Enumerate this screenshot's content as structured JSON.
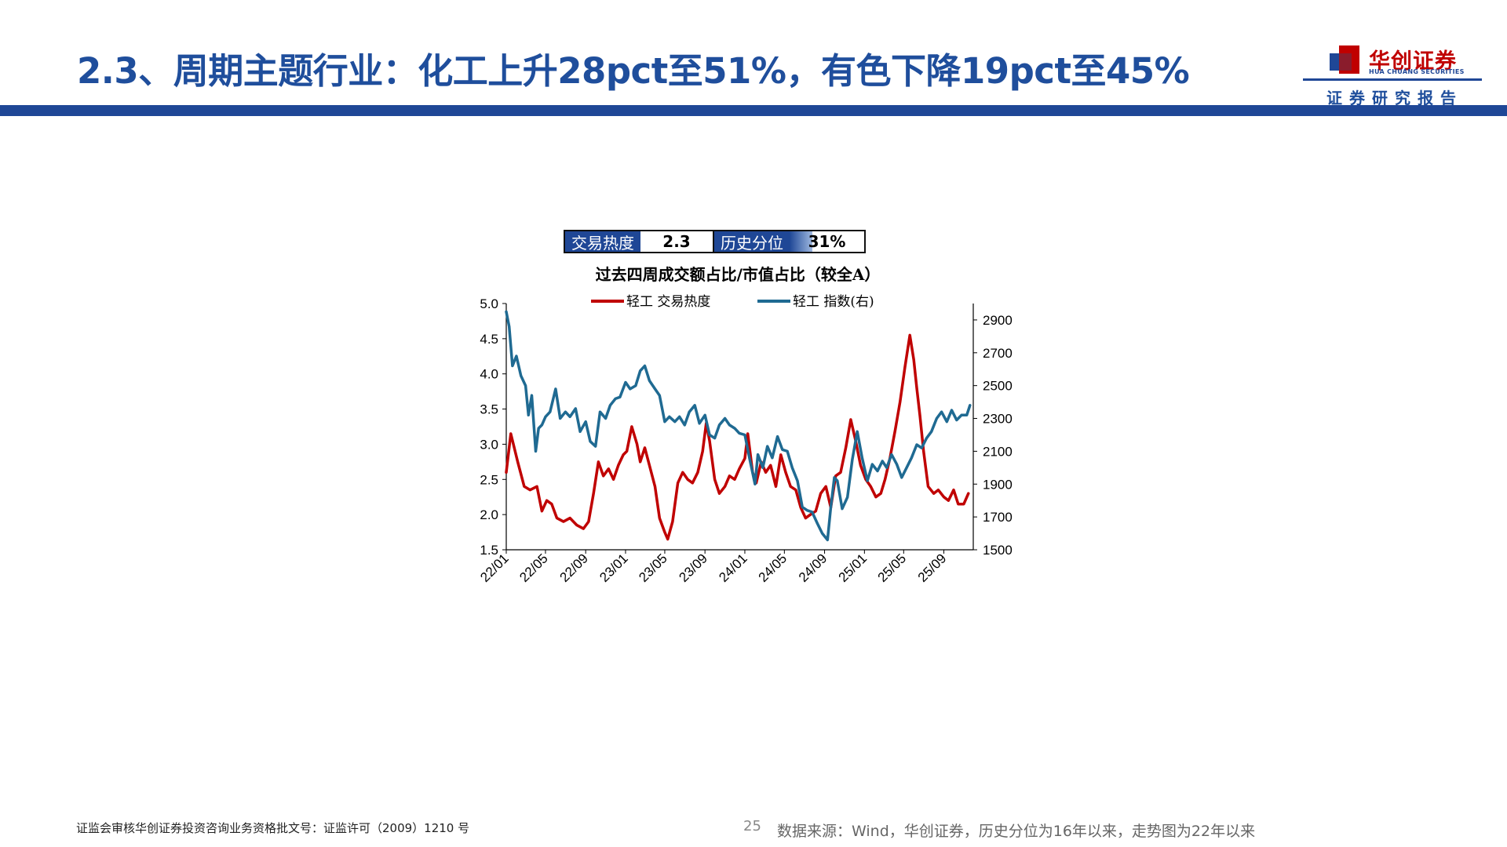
{
  "header": {
    "title": "2.3、周期主题行业：化工上升28pct至51%，有色下降19pct至45%",
    "logo_text": "华创证券",
    "logo_sub": "HUA CHUANG SECURITIES",
    "report_label": "证券研究报告"
  },
  "heat_box": {
    "label1": "交易热度",
    "value1": "2.3",
    "label2": "历史分位",
    "value2": "31%",
    "percentile_fraction": 0.31
  },
  "colors": {
    "brand_blue": "#1f4796",
    "title_blue": "#1f4e9c",
    "heat_red": "#c00000",
    "index_blue": "#1f6a92"
  },
  "chart_data": {
    "type": "line",
    "title": "过去四周成交额占比/市值占比（较全A）",
    "legend_position": "top-center",
    "grid": false,
    "x_ticks": [
      "22/01",
      "22/05",
      "22/09",
      "23/01",
      "23/05",
      "23/09",
      "24/01",
      "24/05",
      "24/09",
      "25/01",
      "25/05",
      "25/09"
    ],
    "x_range": [
      "2022-01",
      "2025-11"
    ],
    "y_left": {
      "range": [
        1.5,
        5.0
      ],
      "ticks": [
        "1.5",
        "2.0",
        "2.5",
        "3.0",
        "3.5",
        "4.0",
        "4.5",
        "5.0"
      ]
    },
    "y_right": {
      "range": [
        1500,
        3000
      ],
      "ticks": [
        "1500",
        "1700",
        "1900",
        "2100",
        "2300",
        "2500",
        "2700",
        "2900"
      ]
    },
    "series": [
      {
        "name": "轻工 交易热度",
        "axis": "left",
        "color": "#c00000",
        "x": [
          "2022-01-01",
          "2022-01-15",
          "2022-02-05",
          "2022-02-25",
          "2022-03-15",
          "2022-04-05",
          "2022-04-20",
          "2022-05-05",
          "2022-05-20",
          "2022-06-05",
          "2022-06-25",
          "2022-07-15",
          "2022-08-05",
          "2022-08-25",
          "2022-09-10",
          "2022-09-25",
          "2022-10-10",
          "2022-10-25",
          "2022-11-10",
          "2022-11-25",
          "2022-12-10",
          "2022-12-25",
          "2023-01-05",
          "2023-01-20",
          "2023-02-05",
          "2023-02-15",
          "2023-03-01",
          "2023-03-15",
          "2023-04-01",
          "2023-04-15",
          "2023-05-01",
          "2023-05-10",
          "2023-05-25",
          "2023-06-10",
          "2023-06-25",
          "2023-07-10",
          "2023-07-25",
          "2023-08-10",
          "2023-08-25",
          "2023-09-05",
          "2023-09-15",
          "2023-10-01",
          "2023-10-15",
          "2023-11-01",
          "2023-11-15",
          "2023-12-01",
          "2023-12-15",
          "2024-01-01",
          "2024-01-10",
          "2024-01-25",
          "2024-02-05",
          "2024-02-20",
          "2024-03-05",
          "2024-03-20",
          "2024-04-05",
          "2024-04-20",
          "2024-05-05",
          "2024-05-20",
          "2024-06-05",
          "2024-06-20",
          "2024-07-05",
          "2024-07-20",
          "2024-08-05",
          "2024-08-20",
          "2024-09-05",
          "2024-09-20",
          "2024-10-05",
          "2024-10-20",
          "2024-11-05",
          "2024-11-20",
          "2024-12-05",
          "2024-12-20",
          "2025-01-05",
          "2025-01-20",
          "2025-02-05",
          "2025-02-20",
          "2025-03-05",
          "2025-03-20",
          "2025-04-05",
          "2025-04-20",
          "2025-05-05",
          "2025-05-20",
          "2025-06-01",
          "2025-06-10",
          "2025-06-20",
          "2025-07-01",
          "2025-07-15",
          "2025-08-01",
          "2025-08-15",
          "2025-09-01",
          "2025-09-15",
          "2025-10-01",
          "2025-10-15",
          "2025-11-01",
          "2025-11-15"
        ],
        "values": [
          2.6,
          3.15,
          2.75,
          2.4,
          2.35,
          2.4,
          2.05,
          2.2,
          2.15,
          1.95,
          1.9,
          1.95,
          1.85,
          1.8,
          1.9,
          2.3,
          2.75,
          2.55,
          2.65,
          2.5,
          2.7,
          2.85,
          2.9,
          3.25,
          3.0,
          2.75,
          2.95,
          2.7,
          2.4,
          1.95,
          1.75,
          1.65,
          1.9,
          2.45,
          2.6,
          2.5,
          2.45,
          2.6,
          2.9,
          3.3,
          3.05,
          2.5,
          2.3,
          2.4,
          2.55,
          2.5,
          2.65,
          2.8,
          3.15,
          2.6,
          2.45,
          2.75,
          2.6,
          2.7,
          2.4,
          2.85,
          2.6,
          2.4,
          2.35,
          2.1,
          1.95,
          2.0,
          2.05,
          2.3,
          2.4,
          2.1,
          2.55,
          2.6,
          2.95,
          3.35,
          3.05,
          2.7,
          2.5,
          2.4,
          2.25,
          2.3,
          2.5,
          2.8,
          3.2,
          3.6,
          4.1,
          4.55,
          4.2,
          3.8,
          3.4,
          2.9,
          2.4,
          2.3,
          2.35,
          2.25,
          2.2,
          2.35,
          2.15,
          2.15,
          2.3
        ]
      },
      {
        "name": "轻工 指数(右)",
        "axis": "right",
        "color": "#1f6a92",
        "x": [
          "2022-01-01",
          "2022-01-10",
          "2022-01-20",
          "2022-02-01",
          "2022-02-15",
          "2022-03-01",
          "2022-03-10",
          "2022-03-20",
          "2022-04-01",
          "2022-04-10",
          "2022-04-20",
          "2022-05-01",
          "2022-05-15",
          "2022-06-01",
          "2022-06-15",
          "2022-07-01",
          "2022-07-15",
          "2022-08-01",
          "2022-08-15",
          "2022-09-01",
          "2022-09-15",
          "2022-10-01",
          "2022-10-15",
          "2022-11-01",
          "2022-11-15",
          "2022-12-01",
          "2022-12-15",
          "2023-01-01",
          "2023-01-15",
          "2023-02-01",
          "2023-02-15",
          "2023-03-01",
          "2023-03-15",
          "2023-04-01",
          "2023-04-15",
          "2023-05-01",
          "2023-05-15",
          "2023-06-01",
          "2023-06-15",
          "2023-07-01",
          "2023-07-15",
          "2023-08-01",
          "2023-08-15",
          "2023-09-01",
          "2023-09-15",
          "2023-10-01",
          "2023-10-15",
          "2023-11-01",
          "2023-11-15",
          "2023-12-01",
          "2023-12-15",
          "2024-01-01",
          "2024-01-15",
          "2024-02-01",
          "2024-02-10",
          "2024-02-25",
          "2024-03-10",
          "2024-03-25",
          "2024-04-10",
          "2024-04-25",
          "2024-05-10",
          "2024-05-25",
          "2024-06-10",
          "2024-06-25",
          "2024-07-10",
          "2024-07-25",
          "2024-08-10",
          "2024-08-25",
          "2024-09-10",
          "2024-09-20",
          "2024-10-01",
          "2024-10-10",
          "2024-10-25",
          "2024-11-10",
          "2024-11-25",
          "2024-12-10",
          "2024-12-25",
          "2025-01-10",
          "2025-01-25",
          "2025-02-10",
          "2025-02-25",
          "2025-03-10",
          "2025-03-25",
          "2025-04-10",
          "2025-04-25",
          "2025-05-10",
          "2025-05-25",
          "2025-06-10",
          "2025-06-25",
          "2025-07-10",
          "2025-07-25",
          "2025-08-10",
          "2025-08-25",
          "2025-09-10",
          "2025-09-25",
          "2025-10-10",
          "2025-10-25",
          "2025-11-10",
          "2025-11-20"
        ],
        "values": [
          2950,
          2860,
          2620,
          2680,
          2560,
          2500,
          2320,
          2440,
          2100,
          2240,
          2260,
          2310,
          2340,
          2480,
          2300,
          2340,
          2310,
          2360,
          2220,
          2280,
          2160,
          2130,
          2340,
          2300,
          2380,
          2420,
          2430,
          2520,
          2480,
          2500,
          2590,
          2620,
          2530,
          2480,
          2440,
          2280,
          2310,
          2280,
          2310,
          2260,
          2340,
          2380,
          2270,
          2320,
          2200,
          2180,
          2260,
          2300,
          2260,
          2240,
          2210,
          2200,
          2060,
          1900,
          2080,
          2000,
          2130,
          2060,
          2190,
          2110,
          2100,
          2000,
          1920,
          1760,
          1740,
          1730,
          1660,
          1600,
          1560,
          1760,
          1940,
          1920,
          1750,
          1820,
          2050,
          2220,
          2060,
          1920,
          2020,
          1980,
          2040,
          2000,
          2080,
          2020,
          1940,
          2000,
          2060,
          2140,
          2120,
          2180,
          2220,
          2300,
          2340,
          2280,
          2350,
          2290,
          2320,
          2320,
          2380
        ]
      }
    ]
  },
  "footer": {
    "license": "证监会审核华创证券投资咨询业务资格批文号：证监许可（2009）1210 号",
    "page": "25",
    "source": "数据来源：Wind，华创证券，历史分位为16年以来，走势图为22年以来"
  }
}
